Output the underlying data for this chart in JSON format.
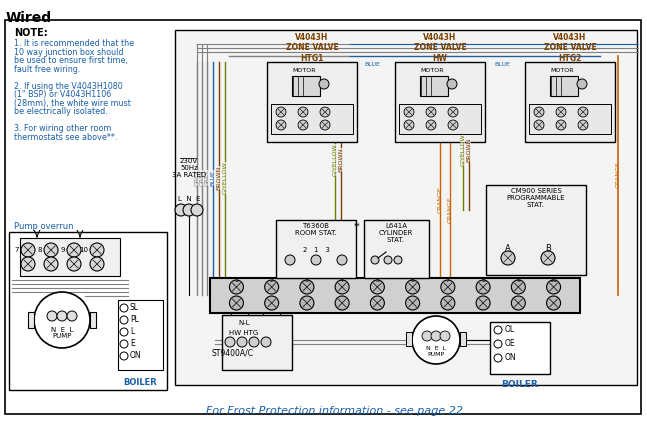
{
  "title": "Wired",
  "bg": "#ffffff",
  "note_title": "NOTE:",
  "note_color": "#1a5fa8",
  "note_lines": [
    "1. It is recommended that the",
    "10 way junction box should",
    "be used to ensure first time,",
    "fault free wiring.",
    "",
    "2. If using the V4043H1080",
    "(1\" BSP) or V4043H1106",
    "(28mm), the white wire must",
    "be electrically isolated.",
    "",
    "3. For wiring other room",
    "thermostats see above**."
  ],
  "pump_overrun_label": "Pump overrun",
  "zone_labels": [
    "V4043H\nZONE VALVE\nHTG1",
    "V4043H\nZONE VALVE\nHW",
    "V4043H\nZONE VALVE\nHTG2"
  ],
  "frost_text": "For Frost Protection information - see page 22",
  "c_grey": "#808080",
  "c_blue": "#1a5fa8",
  "c_brown": "#7b3f00",
  "c_gyellow": "#6a7f00",
  "c_orange": "#c86400",
  "c_black": "#000000",
  "c_white": "#ffffff",
  "c_label": "#8B4513"
}
